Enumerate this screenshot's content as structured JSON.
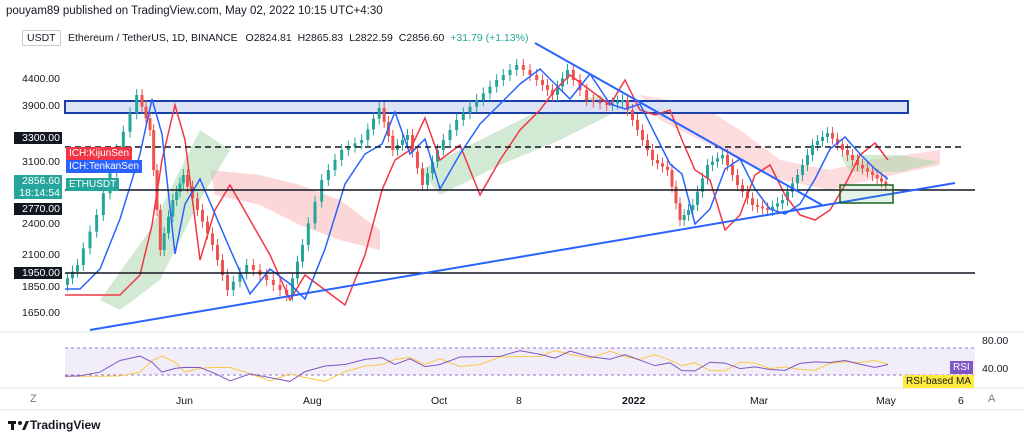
{
  "header": {
    "publisher": "pouyam89 published on TradingView.com, May 02, 2022 10:15 UTC+4:30"
  },
  "legend": {
    "currency": "USDT",
    "symbol": "Ethereum / TetherUS, 1D, BINANCE",
    "open": "O2824.81",
    "high": "H2865.83",
    "low": "L2822.59",
    "close": "C2856.60",
    "change": "+31.79 (+1.13%)"
  },
  "price_axis": {
    "labels": [
      "4400.00",
      "3900.00",
      "3300.00",
      "3100.00",
      "2856.60",
      "18:14:54",
      "2770.00",
      "2400.00",
      "2100.00",
      "1950.00",
      "1850.00",
      "1650.00"
    ]
  },
  "indicator_tags": [
    "ICH:KijunSen",
    "ICH:TenkanSen",
    "ETHUSDT"
  ],
  "rsi_axis": {
    "labels": [
      "80.00",
      "40.00"
    ],
    "tags": [
      "RSI",
      "RSI-based MA"
    ]
  },
  "time_axis": [
    "Jun",
    "Aug",
    "Oct",
    "8",
    "2022",
    "Mar",
    "May",
    "6"
  ],
  "footer": {
    "logo": "TradingView",
    "left_button": "Z",
    "right_button": "A"
  }
}
